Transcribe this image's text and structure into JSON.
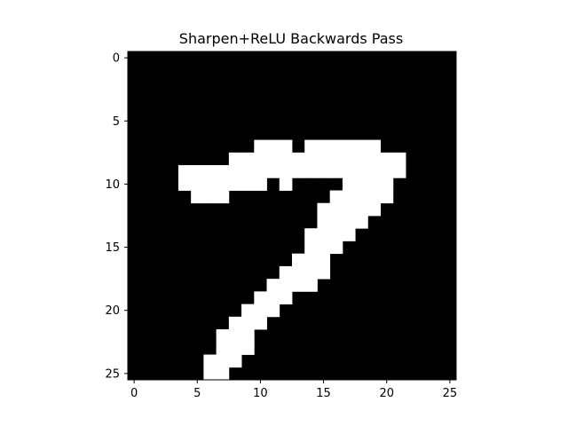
{
  "chart_data": {
    "type": "heatmap",
    "title": "Sharpen+ReLU Backwards Pass",
    "xlabel": "",
    "ylabel": "",
    "x_ticks": [
      "0",
      "5",
      "10",
      "15",
      "20",
      "25"
    ],
    "y_ticks": [
      "0",
      "5",
      "10",
      "15",
      "20",
      "25"
    ],
    "xlim": [
      -0.5,
      25.5
    ],
    "ylim": [
      25.5,
      -0.5
    ],
    "colormap": {
      "low": "#000000",
      "high": "#ffffff"
    },
    "grid": false,
    "rows": 26,
    "cols": 26,
    "white_cells_by_row": {
      "7": [
        [
          10,
          12
        ],
        [
          14,
          19
        ]
      ],
      "8": [
        [
          8,
          21
        ]
      ],
      "9": [
        [
          4,
          21
        ]
      ],
      "10": [
        [
          4,
          10
        ],
        [
          12,
          12
        ],
        [
          17,
          20
        ]
      ],
      "11": [
        [
          5,
          7
        ],
        [
          16,
          20
        ]
      ],
      "12": [
        [
          15,
          19
        ]
      ],
      "13": [
        [
          15,
          18
        ]
      ],
      "14": [
        [
          14,
          17
        ]
      ],
      "15": [
        [
          14,
          16
        ]
      ],
      "16": [
        [
          13,
          15
        ]
      ],
      "17": [
        [
          12,
          15
        ]
      ],
      "18": [
        [
          11,
          14
        ]
      ],
      "19": [
        [
          10,
          12
        ]
      ],
      "20": [
        [
          9,
          11
        ]
      ],
      "21": [
        [
          8,
          10
        ]
      ],
      "22": [
        [
          7,
          9
        ]
      ],
      "23": [
        [
          7,
          9
        ]
      ],
      "24": [
        [
          6,
          8
        ]
      ],
      "25": [
        [
          6,
          7
        ]
      ]
    }
  }
}
